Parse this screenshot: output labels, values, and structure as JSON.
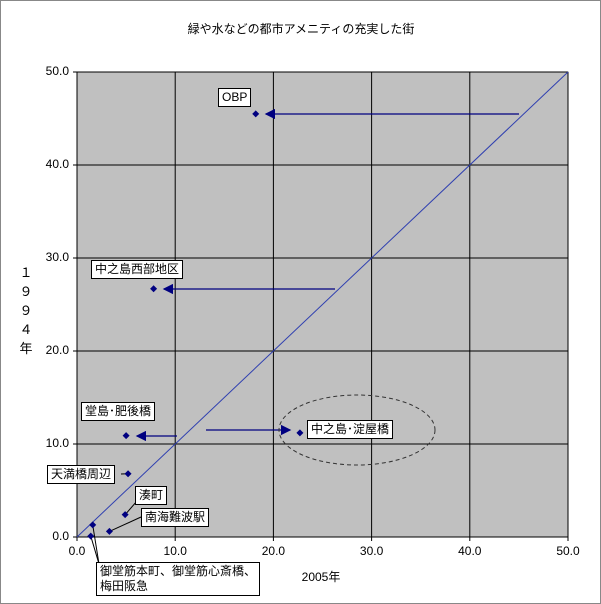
{
  "chart_data": {
    "type": "scatter",
    "title": "緑や水などの都市アメニティの充実した街",
    "x_label": "2005年",
    "y_label": "１９９４年",
    "x": [
      18.2,
      7.8,
      5.0,
      22.7,
      5.2,
      4.9,
      3.3,
      1.6,
      1.4
    ],
    "y": [
      45.5,
      26.7,
      10.9,
      11.2,
      6.8,
      2.4,
      0.6,
      1.3,
      0.1
    ],
    "point_labels": [
      "OBP",
      "中之島西部地区",
      "堂島･肥後橋",
      "中之島･淀屋橋",
      "天満橋周辺",
      "湊町",
      "南海難波駅",
      "御堂筋本町、御堂筋心斎橋、\n梅田阪急",
      null
    ],
    "color": "#000080",
    "xlim": [
      0,
      50
    ],
    "ylim": [
      0,
      50
    ],
    "xticks": [
      {
        "value": 0,
        "label": "0.0"
      },
      {
        "value": 10,
        "label": "10.0"
      },
      {
        "value": 20,
        "label": "20.0"
      },
      {
        "value": 30,
        "label": "30.0"
      },
      {
        "value": 40,
        "label": "40.0"
      },
      {
        "value": 50,
        "label": "50.0"
      }
    ],
    "yticks": [
      {
        "value": 0,
        "label": "0.0"
      },
      {
        "value": 10,
        "label": "10.0"
      },
      {
        "value": 20,
        "label": "20.0"
      },
      {
        "value": 30,
        "label": "30.0"
      },
      {
        "value": 40,
        "label": "40.0"
      },
      {
        "value": 50,
        "label": "50.0"
      }
    ],
    "grid": true
  }
}
